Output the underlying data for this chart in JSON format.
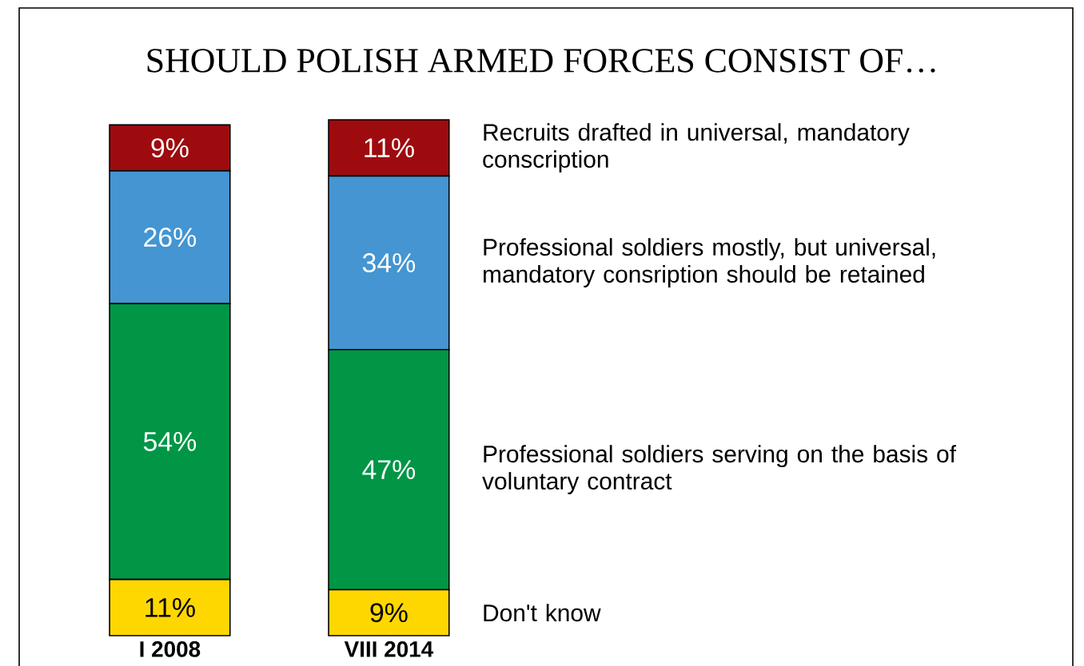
{
  "chart_data": {
    "type": "bar",
    "stacked": true,
    "title": "SHOULD POLISH ARMED FORCES CONSIST OF…",
    "categories": [
      "I 2008",
      "VIII 2014"
    ],
    "series": [
      {
        "name": "Don't know",
        "color": "#ffd700",
        "values": [
          11,
          9
        ],
        "value_labels": [
          "11%",
          "9%"
        ]
      },
      {
        "name": "Professional soldiers serving on the basis of voluntary contract",
        "color": "#009646",
        "values": [
          54,
          47
        ],
        "value_labels": [
          "54%",
          "47%"
        ]
      },
      {
        "name": "Professional soldiers mostly, but universal, mandatory consription should be retained",
        "color": "#4495d1",
        "values": [
          26,
          34
        ],
        "value_labels": [
          "26%",
          "34%"
        ]
      },
      {
        "name": "Recruits drafted in universal, mandatory conscription",
        "color": "#9e0b0f",
        "values": [
          9,
          11
        ],
        "value_labels": [
          "9%",
          "11%"
        ]
      }
    ]
  }
}
